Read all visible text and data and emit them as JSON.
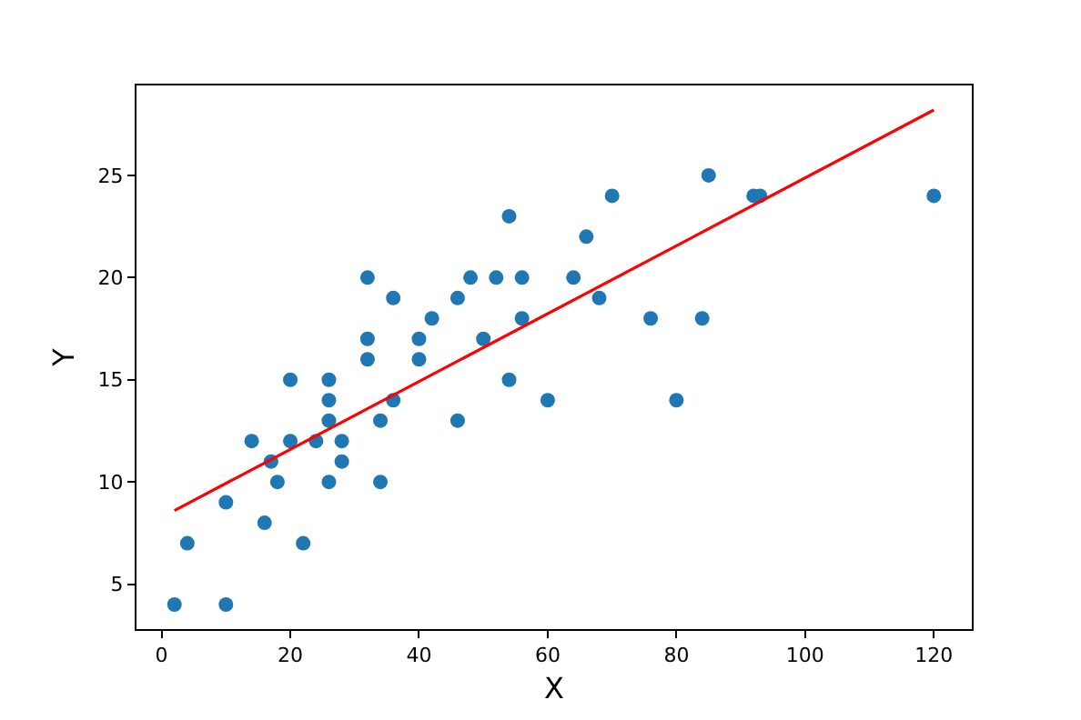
{
  "chart_data": {
    "type": "scatter",
    "xlabel": "X",
    "ylabel": "Y",
    "xlim": [
      -3.9,
      125.9
    ],
    "ylim": [
      2.8,
      29.4
    ],
    "xticks": [
      0,
      20,
      40,
      60,
      80,
      100,
      120
    ],
    "yticks": [
      5,
      10,
      15,
      20,
      25
    ],
    "series": [
      {
        "marker": "circle",
        "color": "#1f77b4",
        "x": [
          2,
          10,
          4,
          22,
          16,
          10,
          18,
          26,
          34,
          17,
          28,
          14,
          20,
          24,
          28,
          26,
          34,
          46,
          26,
          36,
          60,
          80,
          20,
          26,
          54,
          32,
          40,
          32,
          40,
          50,
          42,
          56,
          76,
          84,
          36,
          46,
          68,
          32,
          48,
          52,
          56,
          64,
          66,
          54,
          70,
          92,
          93,
          120,
          85
        ],
        "values": [
          4,
          4,
          7,
          7,
          8,
          9,
          10,
          10,
          10,
          11,
          11,
          12,
          12,
          12,
          12,
          13,
          13,
          13,
          14,
          14,
          14,
          14,
          15,
          15,
          15,
          16,
          16,
          17,
          17,
          17,
          18,
          18,
          18,
          18,
          19,
          19,
          19,
          20,
          20,
          20,
          20,
          20,
          22,
          23,
          24,
          24,
          24,
          24,
          25
        ]
      },
      {
        "type": "line",
        "color": "#ff0000",
        "line_style": "solid",
        "marker": "none",
        "x": [
          2,
          120
        ],
        "values": [
          8.6,
          28.2
        ]
      }
    ]
  }
}
